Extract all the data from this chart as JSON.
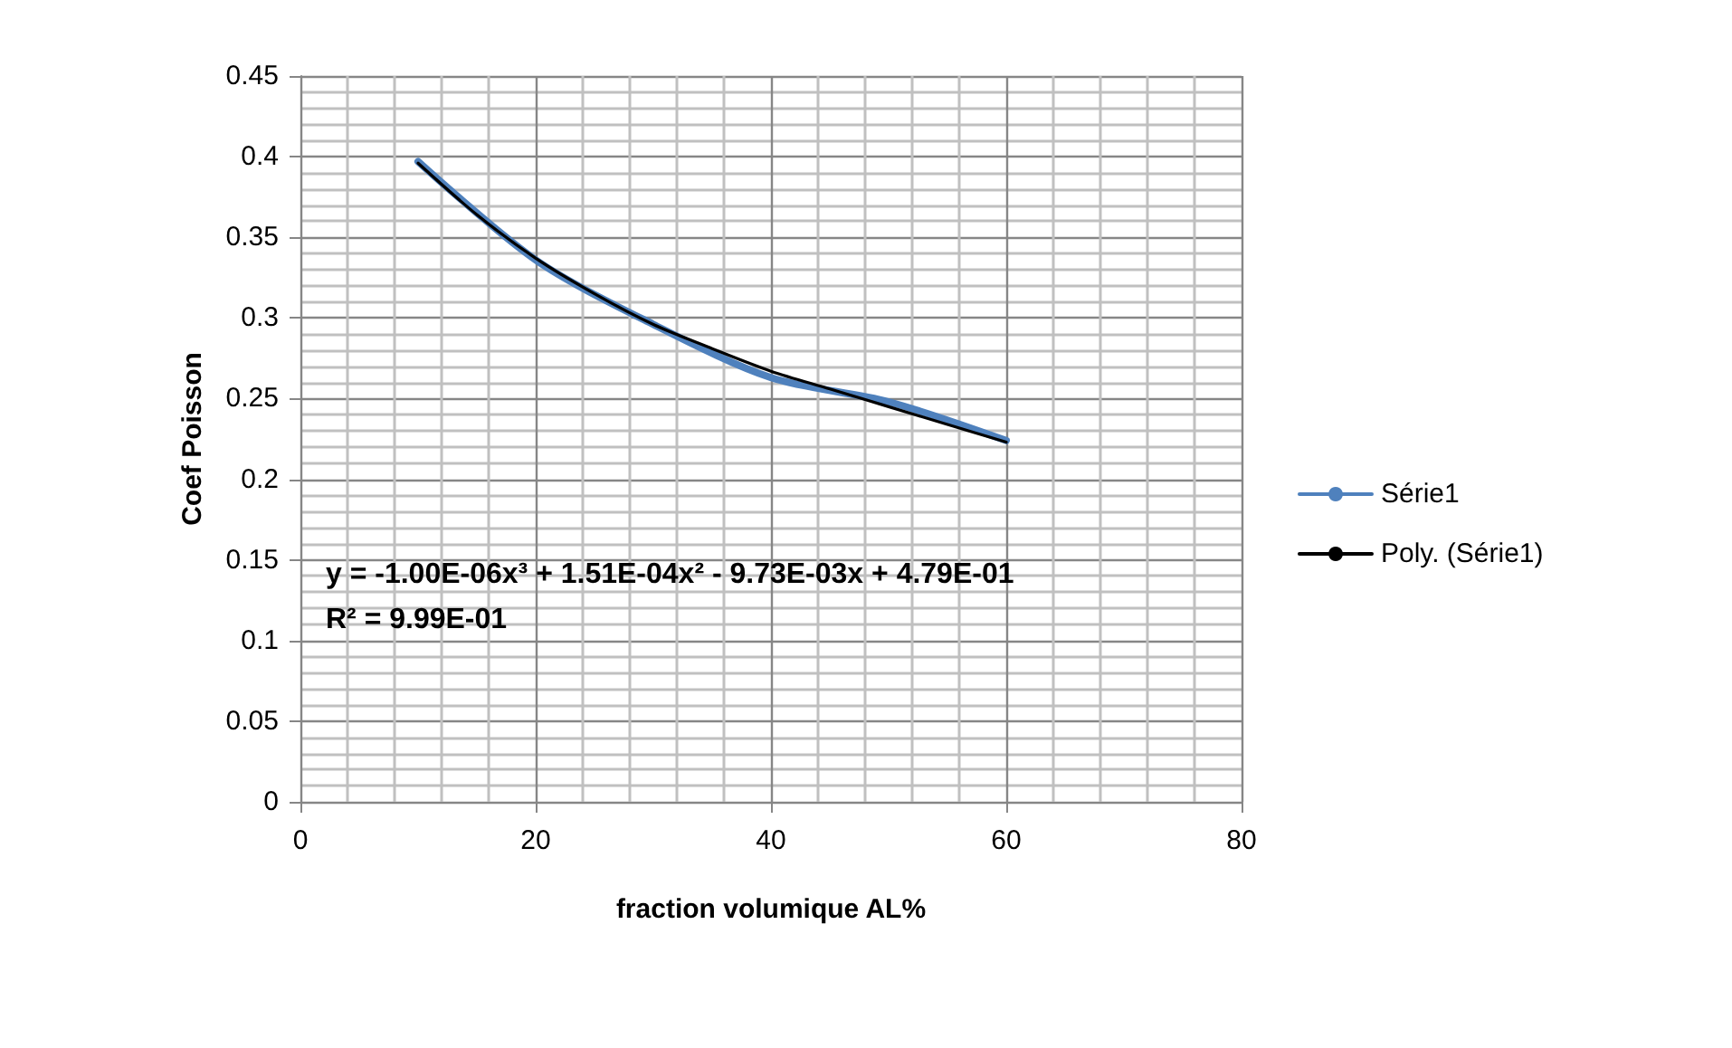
{
  "chart_data": {
    "type": "line",
    "xlabel": "fraction volumique AL%",
    "ylabel": "Coef Poisson",
    "series": [
      {
        "name": "Série1",
        "color": "#4f81bd",
        "x": [
          10,
          20,
          30,
          40,
          50,
          60
        ],
        "values": [
          0.397,
          0.336,
          0.296,
          0.263,
          0.248,
          0.224
        ]
      },
      {
        "name": "Poly. (Série1)",
        "color": "#000000",
        "type": "line",
        "x": [
          10,
          15,
          20,
          25,
          30,
          35,
          40,
          45,
          50,
          55,
          60
        ],
        "values": [
          0.396,
          0.364,
          0.337,
          0.315,
          0.296,
          0.281,
          0.267,
          0.256,
          0.245,
          0.234,
          0.223
        ]
      }
    ],
    "xlim": [
      0,
      80
    ],
    "xticks": [
      0,
      20,
      40,
      60,
      80
    ],
    "ylim": [
      0,
      0.45
    ],
    "yticks": [
      0,
      0.05,
      0.1,
      0.15,
      0.2,
      0.25,
      0.3,
      0.35,
      0.4,
      0.45
    ],
    "annotations": [
      "y = -1.00E-06x³ + 1.51E-04x² - 9.73E-03x + 4.79E-01",
      "R² = 9.99E-01"
    ],
    "grid": true,
    "legend": "right",
    "marker": "none",
    "line_style": "solid"
  }
}
